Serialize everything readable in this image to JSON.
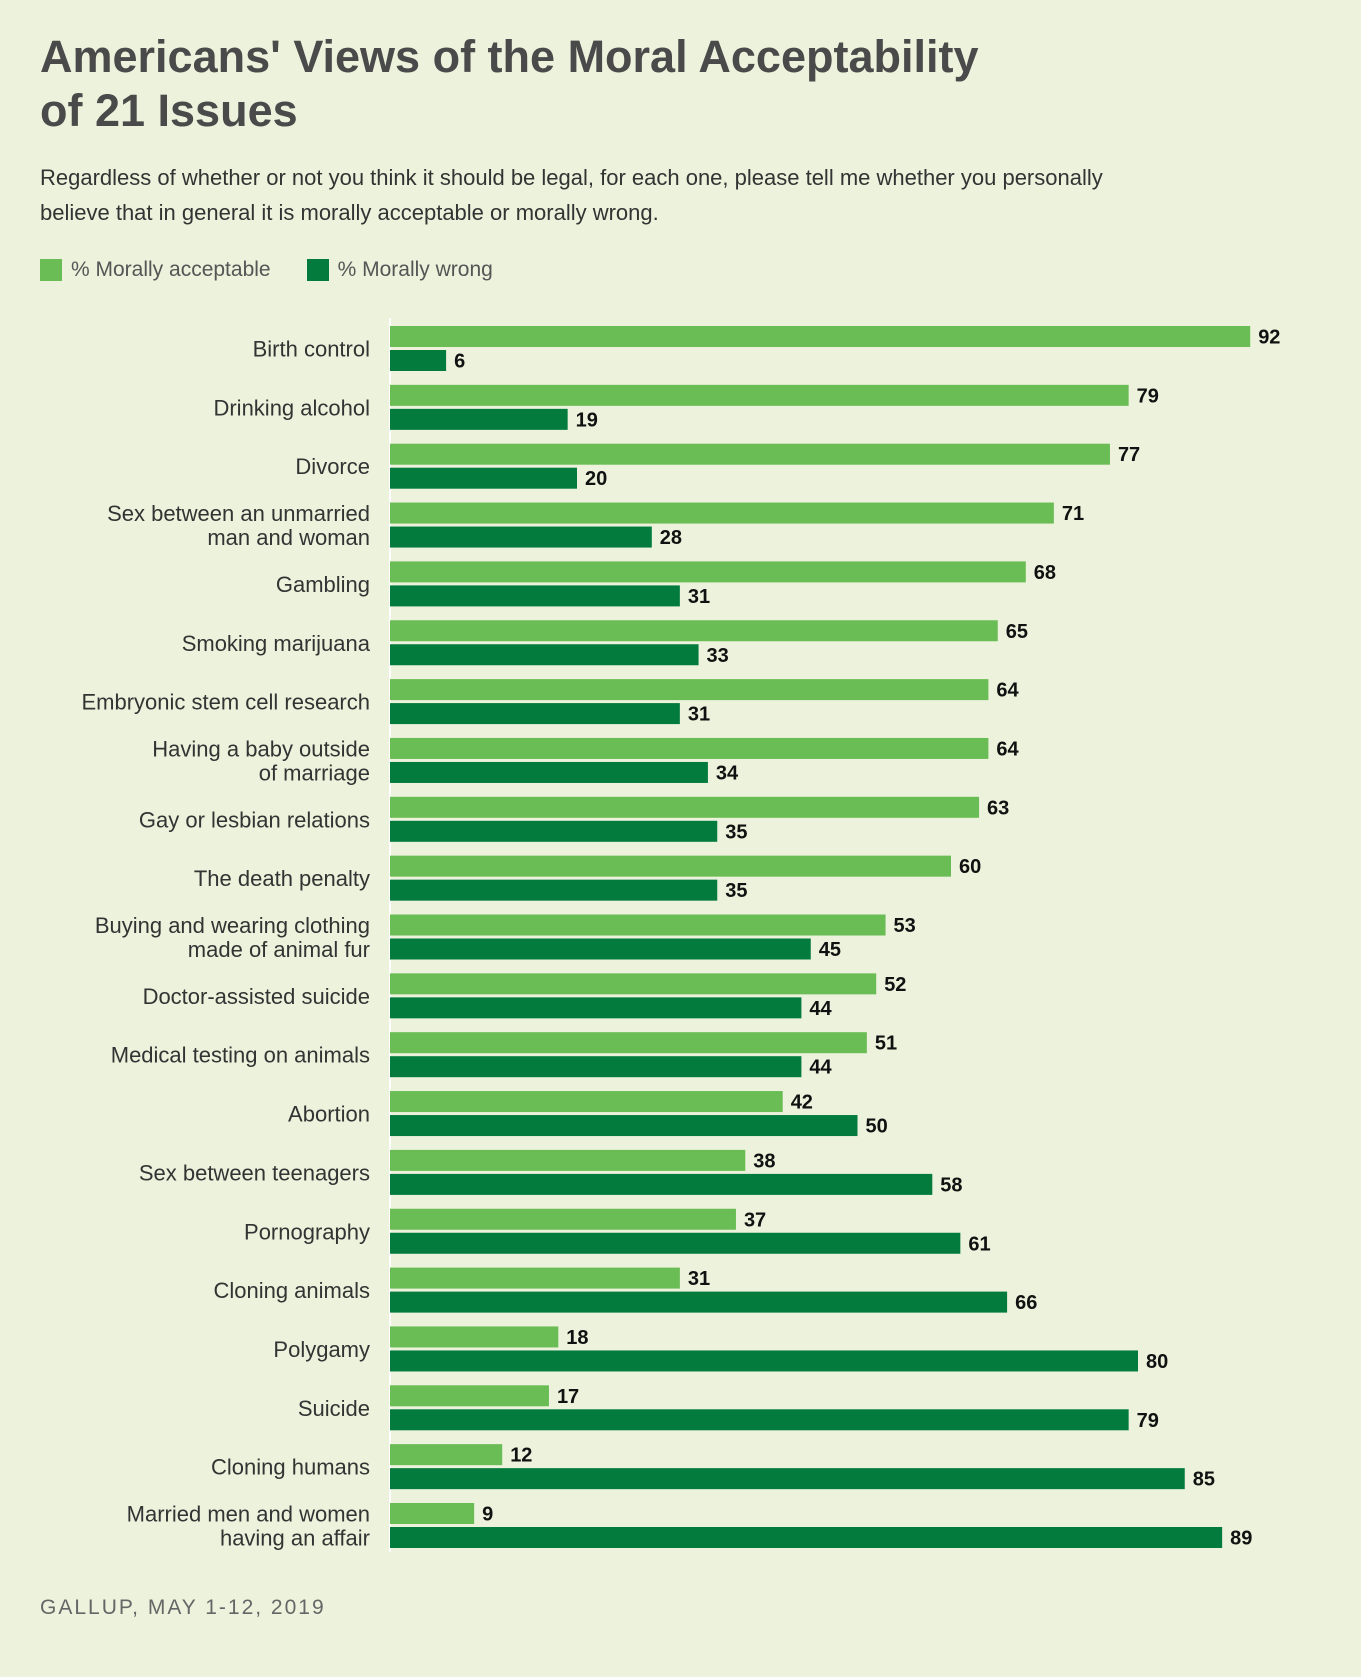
{
  "header": {
    "title_line1": "Americans' Views of the Moral Acceptability",
    "title_line2": "of 21 Issues",
    "subtitle_line1": "Regardless of whether or not you think it should be legal, for each one, please tell me whether you personally",
    "subtitle_line2": "believe that in general it is morally acceptable or morally wrong."
  },
  "legend": {
    "acceptable": "% Morally acceptable",
    "wrong": "% Morally wrong"
  },
  "colors": {
    "acceptable": "#6abd54",
    "wrong": "#027b3c"
  },
  "source": "GALLUP, MAY 1-12, 2019",
  "chart_data": {
    "type": "bar",
    "orientation": "horizontal",
    "title": "Americans' Views of the Moral Acceptability of 21 Issues",
    "categories": [
      [
        "Birth control"
      ],
      [
        "Drinking alcohol"
      ],
      [
        "Divorce"
      ],
      [
        "Sex between an unmarried",
        "man and woman"
      ],
      [
        "Gambling"
      ],
      [
        "Smoking marijuana"
      ],
      [
        "Embryonic stem cell research"
      ],
      [
        "Having a baby outside",
        "of marriage"
      ],
      [
        "Gay or lesbian relations"
      ],
      [
        "The death penalty"
      ],
      [
        "Buying and wearing clothing",
        "made of animal fur"
      ],
      [
        "Doctor-assisted suicide"
      ],
      [
        "Medical testing on animals"
      ],
      [
        "Abortion"
      ],
      [
        "Sex between teenagers"
      ],
      [
        "Pornography"
      ],
      [
        "Cloning animals"
      ],
      [
        "Polygamy"
      ],
      [
        "Suicide"
      ],
      [
        "Cloning humans"
      ],
      [
        "Married men and women",
        "having an affair"
      ]
    ],
    "series": [
      {
        "name": "% Morally acceptable",
        "values": [
          92,
          79,
          77,
          71,
          68,
          65,
          64,
          64,
          63,
          60,
          53,
          52,
          51,
          42,
          38,
          37,
          31,
          18,
          17,
          12,
          9
        ]
      },
      {
        "name": "% Morally wrong",
        "values": [
          6,
          19,
          20,
          28,
          31,
          33,
          31,
          34,
          35,
          35,
          45,
          44,
          44,
          50,
          58,
          61,
          66,
          80,
          79,
          85,
          89
        ]
      }
    ],
    "xlim": [
      0,
      100
    ],
    "grid": false,
    "legend_position": "top-left"
  }
}
